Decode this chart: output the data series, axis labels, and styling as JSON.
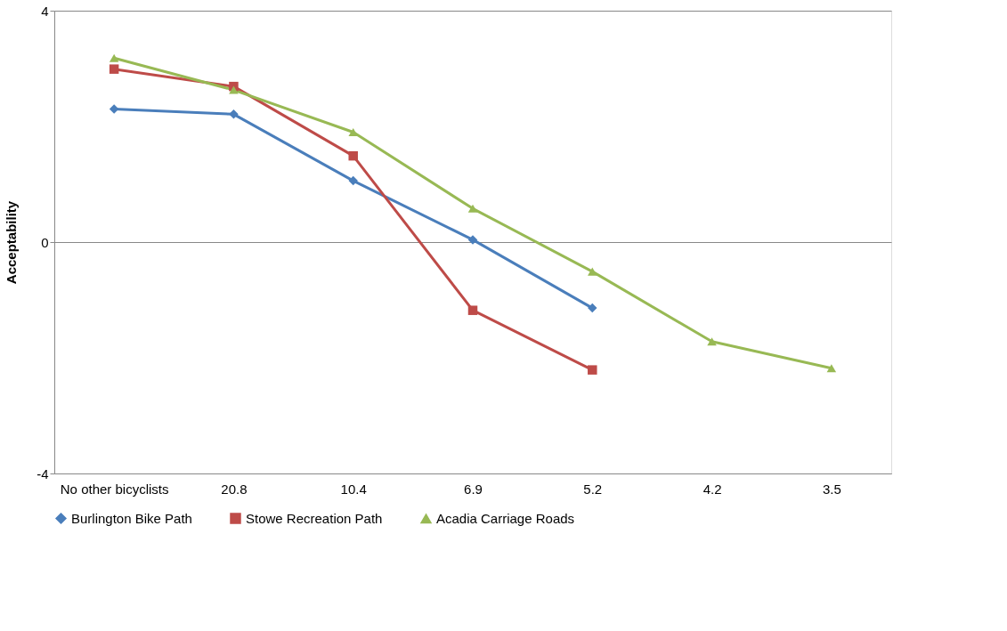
{
  "chart_data": {
    "type": "line",
    "ylabel": "Acceptability",
    "categories": [
      "No other bicyclists",
      "20.8",
      "10.4",
      "6.9",
      "5.2",
      "4.2",
      "3.5"
    ],
    "ylim": [
      -4,
      4
    ],
    "yticks": [
      -4,
      0,
      4
    ],
    "grid": "y",
    "legend": "bottom",
    "line_style": "solid",
    "series": [
      {
        "name": "Burlington Bike Path",
        "color": "#4a7ebb",
        "marker": "diamond",
        "values": [
          2.3,
          2.21,
          1.06,
          0.04,
          -1.14,
          null,
          null
        ]
      },
      {
        "name": "Stowe Recreation Path",
        "color": "#be4b48",
        "marker": "square",
        "values": [
          2.99,
          2.69,
          1.49,
          -1.18,
          -2.21,
          null,
          null
        ]
      },
      {
        "name": "Acadia Carriage Roads",
        "color": "#98b954",
        "marker": "triangle",
        "values": [
          3.18,
          2.63,
          1.9,
          0.58,
          -0.51,
          -1.72,
          -2.18
        ]
      }
    ]
  }
}
